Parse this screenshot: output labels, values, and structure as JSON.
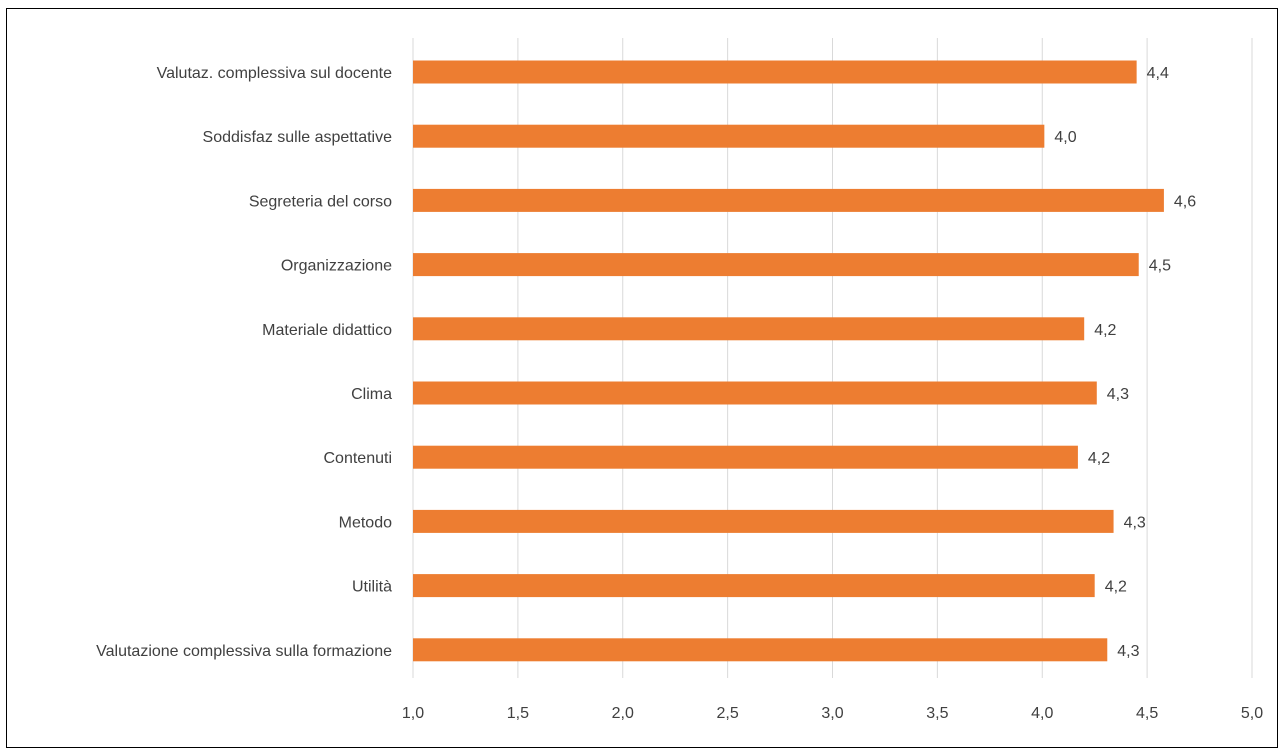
{
  "chart_data": {
    "type": "bar",
    "orientation": "horizontal",
    "title": "",
    "xlabel": "",
    "ylabel": "",
    "xlim": [
      1.0,
      5.0
    ],
    "grid": true,
    "bar_color": "#ED7D31",
    "categories": [
      "Valutaz. complessiva sul docente",
      "Soddisfaz sulle aspettative",
      "Segreteria del corso",
      "Organizzazione",
      "Materiale didattico",
      "Clima",
      "Contenuti",
      "Metodo",
      "Utilità",
      "Valutazione complessiva sulla formazione"
    ],
    "values": [
      4.45,
      4.01,
      4.58,
      4.46,
      4.2,
      4.26,
      4.17,
      4.34,
      4.25,
      4.31
    ],
    "value_labels": [
      "4,4",
      "4,0",
      "4,6",
      "4,5",
      "4,2",
      "4,3",
      "4,2",
      "4,3",
      "4,2",
      "4,3"
    ],
    "tick_labels": [
      "1,0",
      "1,5",
      "2,0",
      "2,5",
      "3,0",
      "3,5",
      "4,0",
      "4,5",
      "5,0"
    ]
  }
}
